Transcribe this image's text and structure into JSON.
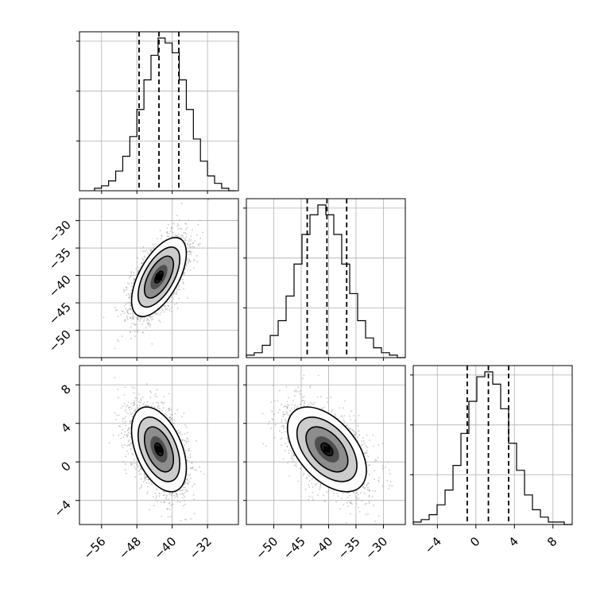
{
  "chart_data": {
    "type": "corner",
    "description_of_params": "3-parameter posterior corner plot",
    "grid": true,
    "quantile_lines": "dashed",
    "colors": {
      "ink": "#000000",
      "grid": "#b0b0b0",
      "points": "#9a9a9a"
    },
    "params": [
      {
        "range": [
          -61,
          -25
        ],
        "ticks": [
          -56,
          -48,
          -40,
          -32
        ],
        "tick_labels": [
          "−56",
          "−48",
          "−40",
          "−32"
        ],
        "quantiles": [
          -47.5,
          -43.0,
          -38.5
        ],
        "hist": {
          "edges_start": -57.6,
          "bin_width": 1.6,
          "counts": [
            1,
            2,
            4,
            8,
            14,
            22,
            33,
            45,
            55,
            62,
            60,
            56,
            45,
            33,
            21,
            12,
            6,
            3,
            1,
            0
          ]
        }
      },
      {
        "range": [
          -55,
          -26
        ],
        "ticks": [
          -50,
          -45,
          -40,
          -35,
          -30
        ],
        "tick_labels": [
          "−50",
          "−45",
          "−40",
          "−35",
          "−30"
        ],
        "quantiles": [
          -43.9,
          -40.3,
          -36.7
        ],
        "hist": {
          "edges_start": -55.0,
          "bin_width": 1.45,
          "counts": [
            1,
            2,
            5,
            9,
            15,
            25,
            38,
            50,
            58,
            62,
            58,
            50,
            38,
            26,
            15,
            8,
            4,
            2,
            1,
            0
          ]
        }
      },
      {
        "range": [
          -6.5,
          10
        ],
        "ticks": [
          -4,
          0,
          4,
          8
        ],
        "tick_labels": [
          "−4",
          "0",
          "4",
          "8"
        ],
        "quantiles": [
          -0.9,
          1.3,
          3.4
        ],
        "hist": {
          "edges_start": -6.5,
          "bin_width": 0.825,
          "counts": [
            1,
            2,
            4,
            8,
            14,
            24,
            37,
            50,
            60,
            62,
            57,
            47,
            33,
            22,
            12,
            6,
            3,
            1,
            1,
            0
          ]
        }
      }
    ],
    "pairs": [
      {
        "row": 1,
        "col": 0,
        "mean": [
          -43.0,
          -40.3
        ],
        "sd": [
          3.1,
          3.6
        ],
        "rho": 0.6
      },
      {
        "row": 2,
        "col": 0,
        "mean": [
          -43.0,
          1.3
        ],
        "sd": [
          3.1,
          2.2
        ],
        "rho": -0.45
      },
      {
        "row": 2,
        "col": 1,
        "mean": [
          -40.3,
          1.3
        ],
        "sd": [
          3.6,
          2.2
        ],
        "rho": -0.5
      }
    ]
  }
}
